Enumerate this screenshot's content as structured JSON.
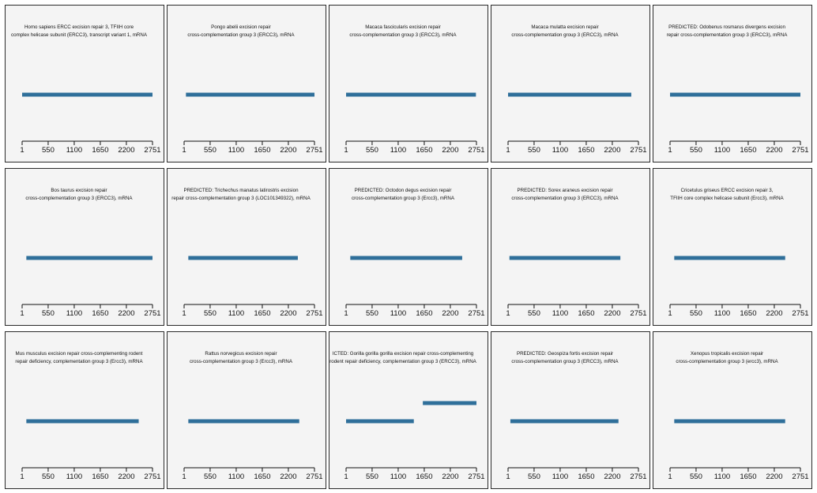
{
  "colors": {
    "segment": "#2f6f9a",
    "panel_bg": "#f4f4f4",
    "border": "#2a2a2a",
    "axis": "#111111"
  },
  "chart_data": {
    "type": "bar",
    "layout": "small-multiples",
    "x_axis": {
      "range": [
        1,
        2751
      ],
      "ticks": [
        1,
        550,
        1100,
        1650,
        2200,
        2751
      ]
    },
    "panels": [
      {
        "title_lines": [
          "Homo sapiens ERCC excision repair 3, TFIIH core",
          "complex helicase subunit (ERCC3), transcript variant 1, mRNA"
        ],
        "segments": [
          {
            "start": 1,
            "end": 2751,
            "level": 0
          }
        ]
      },
      {
        "title_lines": [
          "Pongo abelii excision repair",
          "cross-complementation group 3 (ERCC3), mRNA"
        ],
        "segments": [
          {
            "start": 40,
            "end": 2751,
            "level": 0
          }
        ]
      },
      {
        "title_lines": [
          "Macaca fascicularis excision repair",
          "cross-complementation group 3 (ERCC3), mRNA"
        ],
        "segments": [
          {
            "start": 1,
            "end": 2740,
            "level": 0
          }
        ]
      },
      {
        "title_lines": [
          "Macaca mulatta excision repair",
          "cross-complementation group 3 (ERCC3), mRNA"
        ],
        "segments": [
          {
            "start": 1,
            "end": 2600,
            "level": 0
          }
        ]
      },
      {
        "title_lines": [
          "PREDICTED: Odobenus rosmarus divergens excision",
          "repair cross-complementation group 3 (ERCC3), mRNA"
        ],
        "segments": [
          {
            "start": 1,
            "end": 2751,
            "level": 0
          }
        ]
      },
      {
        "title_lines": [
          "Bos taurus excision repair",
          "cross-complementation group 3 (ERCC3), mRNA"
        ],
        "segments": [
          {
            "start": 90,
            "end": 2751,
            "level": 0
          }
        ]
      },
      {
        "title_lines": [
          "PREDICTED: Trichechus manatus latirostris excision",
          "repair cross-complementation group 3 (LOC101349322), mRNA"
        ],
        "segments": [
          {
            "start": 90,
            "end": 2400,
            "level": 0
          }
        ]
      },
      {
        "title_lines": [
          "PREDICTED: Octodon degus excision repair",
          "cross-complementation group 3 (Ercc3), mRNA"
        ],
        "segments": [
          {
            "start": 90,
            "end": 2450,
            "level": 0
          }
        ]
      },
      {
        "title_lines": [
          "PREDICTED: Sorex araneus excision repair",
          "cross-complementation group 3 (ERCC3), mRNA"
        ],
        "segments": [
          {
            "start": 30,
            "end": 2370,
            "level": 0
          }
        ]
      },
      {
        "title_lines": [
          "Cricetulus griseus ERCC excision repair 3,",
          "TFIIH core complex helicase subunit (Ercc3), mRNA"
        ],
        "segments": [
          {
            "start": 90,
            "end": 2430,
            "level": 0
          }
        ]
      },
      {
        "title_lines": [
          "Mus musculus excision repair cross-complementing rodent",
          "repair deficiency, complementation group 3 (Ercc3), mRNA"
        ],
        "segments": [
          {
            "start": 90,
            "end": 2460,
            "level": 0
          }
        ]
      },
      {
        "title_lines": [
          "Rattus norvegicus excision repair",
          "cross-complementation group 3 (Ercc3), mRNA"
        ],
        "segments": [
          {
            "start": 90,
            "end": 2430,
            "level": 0
          }
        ]
      },
      {
        "title_lines": [
          "ICTED: Gorilla gorilla gorilla excision repair cross-complementing",
          "rodent repair deficiency, complementation group 3 (ERCC3), mRNA"
        ],
        "segments": [
          {
            "start": 1,
            "end": 1430,
            "level": 0
          },
          {
            "start": 1620,
            "end": 2751,
            "level": 1
          }
        ]
      },
      {
        "title_lines": [
          "PREDICTED: Geospiza fortis excision repair",
          "cross-complementation group 3 (ERCC3), mRNA"
        ],
        "segments": [
          {
            "start": 50,
            "end": 2330,
            "level": 0
          }
        ]
      },
      {
        "title_lines": [
          "Xenopus tropicalis excision repair",
          "cross-complementation group 3 (ercc3), mRNA"
        ],
        "segments": [
          {
            "start": 90,
            "end": 2430,
            "level": 0
          }
        ]
      }
    ]
  }
}
